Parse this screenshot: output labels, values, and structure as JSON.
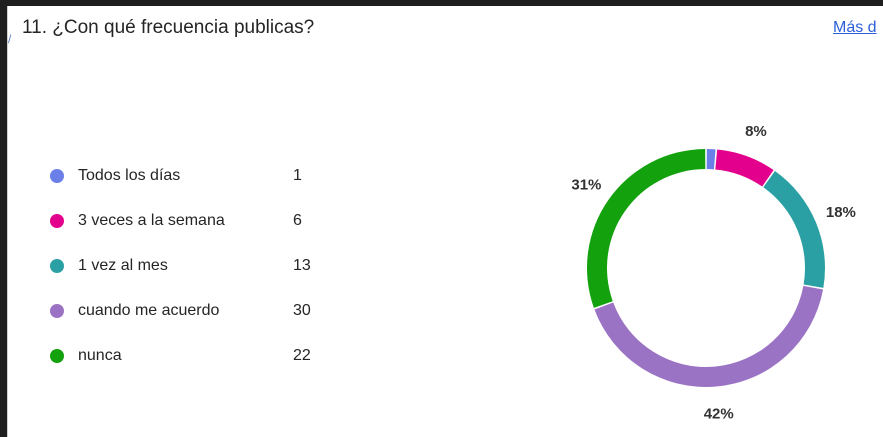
{
  "question": {
    "title": "11. ¿Con qué frecuencia publicas?",
    "more_link": "Más d"
  },
  "chart_data": {
    "type": "pie",
    "style": "donut",
    "title": "11. ¿Con qué frecuencia publicas?",
    "legend_position": "left",
    "categories": [
      "Todos los días",
      "3 veces a la semana",
      "1 vez al mes",
      "cuando me acuerdo",
      "nunca"
    ],
    "values": [
      1,
      6,
      13,
      30,
      22
    ],
    "colors": [
      "#6b7fe8",
      "#e3008c",
      "#2aa0a4",
      "#9b73c4",
      "#13a10e"
    ],
    "percent_labels": [
      "",
      "8%",
      "18%",
      "42%",
      "31%"
    ]
  }
}
